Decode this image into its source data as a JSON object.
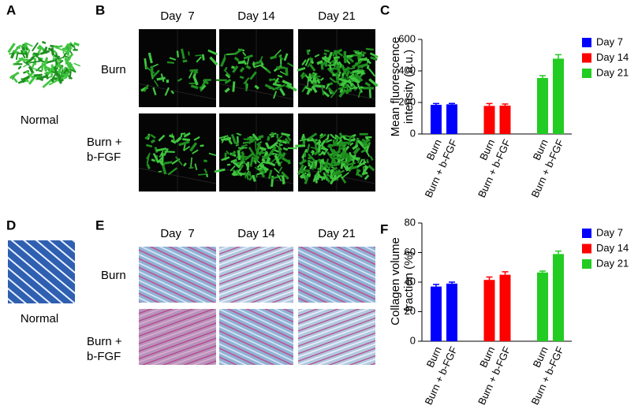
{
  "figure": {
    "panel_labels": [
      "A",
      "B",
      "C",
      "D",
      "E",
      "F"
    ],
    "normal_label": "Normal",
    "day_headers": [
      "Day  7",
      "Day 14",
      "Day 21"
    ],
    "row_labels": [
      "Burn",
      "Burn + b-FGF"
    ]
  },
  "chart_data": [
    {
      "type": "bar",
      "ylabel": "Mean fluorescence intensity (a.u.)",
      "categories": [
        "Burn",
        "Burn + b-FGF",
        "Burn",
        "Burn + b-FGF",
        "Burn",
        "Burn + b-FGF"
      ],
      "series": [
        {
          "name": "Day 7",
          "color": "#0000ff",
          "values": [
            185,
            188,
            null,
            null,
            null,
            null
          ],
          "errors": [
            8,
            6,
            null,
            null,
            null,
            null
          ]
        },
        {
          "name": "Day 14",
          "color": "#ff0000",
          "values": [
            null,
            null,
            178,
            180,
            null,
            null
          ],
          "errors": [
            null,
            null,
            15,
            10,
            null,
            null
          ]
        },
        {
          "name": "Day 21",
          "color": "#22cc22",
          "values": [
            null,
            null,
            null,
            null,
            355,
            478
          ],
          "errors": [
            null,
            null,
            null,
            null,
            15,
            25
          ]
        }
      ],
      "ylim": [
        0,
        600
      ],
      "yticks": [
        0,
        200,
        400,
        600
      ]
    },
    {
      "type": "bar",
      "ylabel": "Collagen volume fraction (%)",
      "categories": [
        "Burn",
        "Burn + b-FGF",
        "Burn",
        "Burn + b-FGF",
        "Burn",
        "Burn + b-FGF"
      ],
      "series": [
        {
          "name": "Day 7",
          "color": "#0000ff",
          "values": [
            37,
            39,
            null,
            null,
            null,
            null
          ],
          "errors": [
            1.5,
            1,
            null,
            null,
            null,
            null
          ]
        },
        {
          "name": "Day 14",
          "color": "#ff0000",
          "values": [
            null,
            null,
            41.5,
            45,
            null,
            null
          ],
          "errors": [
            null,
            null,
            2,
            2,
            null,
            null
          ]
        },
        {
          "name": "Day 21",
          "color": "#22cc22",
          "values": [
            null,
            null,
            null,
            null,
            46.5,
            59
          ],
          "errors": [
            null,
            null,
            null,
            null,
            1,
            2
          ]
        }
      ],
      "ylim": [
        0,
        80
      ],
      "yticks": [
        0,
        20,
        40,
        60,
        80
      ]
    }
  ]
}
